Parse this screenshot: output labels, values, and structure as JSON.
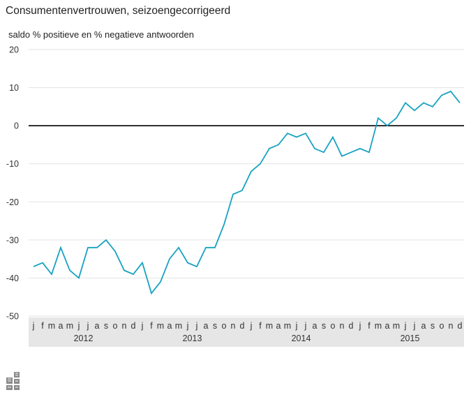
{
  "title": "Consumentenvertrouwen, seizoengecorrigeerd",
  "chart_data": {
    "type": "line",
    "title": "Consumentenvertrouwen, seizoengecorrigeerd",
    "ylabel": "saldo % positieve en % negatieve antwoorden",
    "xlabel": "",
    "ylim": [
      -50,
      20
    ],
    "yticks": [
      20,
      10,
      0,
      -10,
      -20,
      -30,
      -40,
      -50
    ],
    "grid": true,
    "legend": "none",
    "month_labels": [
      "j",
      "f",
      "m",
      "a",
      "m",
      "j",
      "j",
      "a",
      "s",
      "o",
      "n",
      "d"
    ],
    "years": [
      "2012",
      "2013",
      "2014",
      "2015"
    ],
    "x": [
      "2012-01",
      "2012-02",
      "2012-03",
      "2012-04",
      "2012-05",
      "2012-06",
      "2012-07",
      "2012-08",
      "2012-09",
      "2012-10",
      "2012-11",
      "2012-12",
      "2013-01",
      "2013-02",
      "2013-03",
      "2013-04",
      "2013-05",
      "2013-06",
      "2013-07",
      "2013-08",
      "2013-09",
      "2013-10",
      "2013-11",
      "2013-12",
      "2014-01",
      "2014-02",
      "2014-03",
      "2014-04",
      "2014-05",
      "2014-06",
      "2014-07",
      "2014-08",
      "2014-09",
      "2014-10",
      "2014-11",
      "2014-12",
      "2015-01",
      "2015-02",
      "2015-03",
      "2015-04",
      "2015-05",
      "2015-06",
      "2015-07",
      "2015-08",
      "2015-09",
      "2015-10",
      "2015-11",
      "2015-12"
    ],
    "series": [
      {
        "values": [
          -37,
          -36,
          -39,
          -32,
          -38,
          -40,
          -32,
          -32,
          -30,
          -33,
          -38,
          -39,
          -36,
          -44,
          -41,
          -35,
          -32,
          -36,
          -37,
          -32,
          -32,
          -26,
          -18,
          -17,
          -12,
          -10,
          -6,
          -5,
          -2,
          -3,
          -2,
          -6,
          -7,
          -3,
          -8,
          -7,
          -6,
          -7,
          2,
          0,
          2,
          6,
          4,
          6,
          5,
          8,
          9,
          6
        ]
      }
    ],
    "colors": {
      "line": "#17a2c1",
      "zero_line": "#000000",
      "grid": "#e2e2e2",
      "axis_band": "#e6e6e6"
    }
  },
  "logo": {
    "icon": "cbs-logo-icon"
  }
}
